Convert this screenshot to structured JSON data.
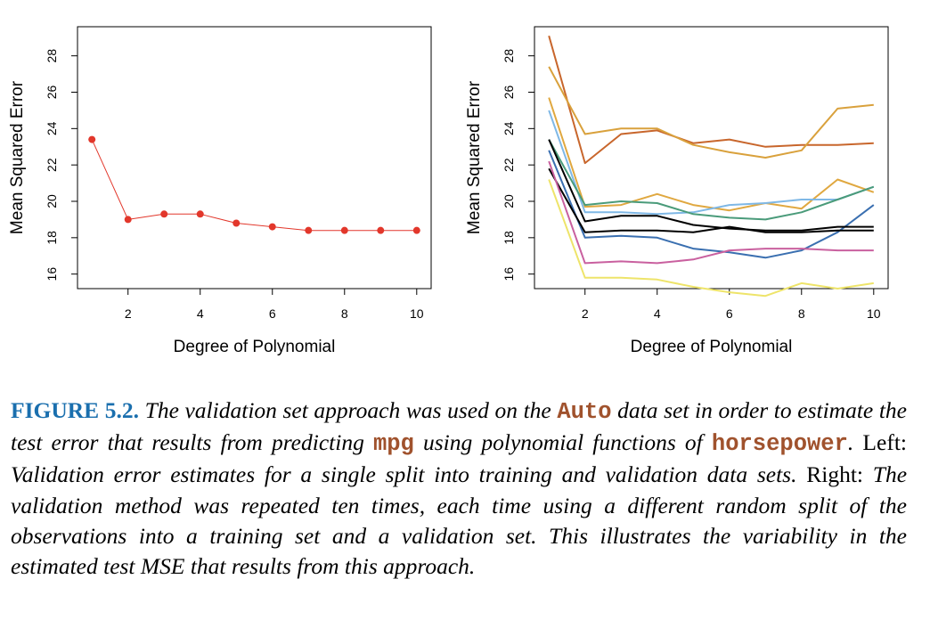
{
  "chart_data": [
    {
      "type": "line",
      "xlabel": "Degree of Polynomial",
      "ylabel": "Mean Squared Error",
      "xlim": [
        0.6,
        10.4
      ],
      "ylim": [
        15.2,
        29.6
      ],
      "xticks": [
        2,
        4,
        6,
        8,
        10
      ],
      "yticks": [
        16,
        18,
        20,
        22,
        24,
        26,
        28
      ],
      "markers": true,
      "series": [
        {
          "color": "#e2372b",
          "x": [
            1,
            2,
            3,
            4,
            5,
            6,
            7,
            8,
            9,
            10
          ],
          "values": [
            23.4,
            19.0,
            19.3,
            19.3,
            18.8,
            18.6,
            18.4,
            18.4,
            18.4,
            18.4
          ]
        }
      ]
    },
    {
      "type": "line",
      "xlabel": "Degree of Polynomial",
      "ylabel": "Mean Squared Error",
      "xlim": [
        0.6,
        10.4
      ],
      "ylim": [
        15.2,
        29.6
      ],
      "xticks": [
        2,
        4,
        6,
        8,
        10
      ],
      "yticks": [
        16,
        18,
        20,
        22,
        24,
        26,
        28
      ],
      "markers": false,
      "series": [
        {
          "color": "#c8662c",
          "x": [
            1,
            2,
            3,
            4,
            5,
            6,
            7,
            8,
            9,
            10
          ],
          "values": [
            29.1,
            22.1,
            23.7,
            23.9,
            23.2,
            23.4,
            23.0,
            23.1,
            23.1,
            23.2
          ]
        },
        {
          "color": "#d9a13c",
          "x": [
            1,
            2,
            3,
            4,
            5,
            6,
            7,
            8,
            9,
            10
          ],
          "values": [
            27.4,
            23.7,
            24.0,
            24.0,
            23.1,
            22.7,
            22.4,
            22.8,
            25.1,
            25.3
          ]
        },
        {
          "color": "#e0a840",
          "x": [
            1,
            2,
            3,
            4,
            5,
            6,
            7,
            8,
            9,
            10
          ],
          "values": [
            25.7,
            19.7,
            19.8,
            20.4,
            19.8,
            19.5,
            19.9,
            19.6,
            21.2,
            20.5
          ]
        },
        {
          "color": "#7fb8e6",
          "x": [
            1,
            2,
            3,
            4,
            5,
            6,
            7,
            8,
            9,
            10
          ],
          "values": [
            25.0,
            19.4,
            19.4,
            19.3,
            19.4,
            19.8,
            19.9,
            20.1,
            20.1,
            20.8
          ]
        },
        {
          "color": "#4a9b7a",
          "x": [
            1,
            2,
            3,
            4,
            5,
            6,
            7,
            8,
            9,
            10
          ],
          "values": [
            23.4,
            19.8,
            20.0,
            19.9,
            19.3,
            19.1,
            19.0,
            19.4,
            20.1,
            20.8
          ]
        },
        {
          "color": "#3a6fb0",
          "x": [
            1,
            2,
            3,
            4,
            5,
            6,
            7,
            8,
            9,
            10
          ],
          "values": [
            22.8,
            18.0,
            18.1,
            18.0,
            17.4,
            17.2,
            16.9,
            17.3,
            18.3,
            19.8
          ]
        },
        {
          "color": "#000000",
          "x": [
            1,
            2,
            3,
            4,
            5,
            6,
            7,
            8,
            9,
            10
          ],
          "values": [
            23.4,
            18.9,
            19.2,
            19.2,
            18.7,
            18.5,
            18.4,
            18.4,
            18.6,
            18.6
          ]
        },
        {
          "color": "#000000",
          "x": [
            1,
            2,
            3,
            4,
            5,
            6,
            7,
            8,
            9,
            10
          ],
          "values": [
            21.8,
            18.3,
            18.4,
            18.4,
            18.3,
            18.6,
            18.3,
            18.3,
            18.4,
            18.4
          ]
        },
        {
          "color": "#c9609f",
          "x": [
            1,
            2,
            3,
            4,
            5,
            6,
            7,
            8,
            9,
            10
          ],
          "values": [
            22.2,
            16.6,
            16.7,
            16.6,
            16.8,
            17.3,
            17.4,
            17.4,
            17.3,
            17.3
          ]
        },
        {
          "color": "#eee46a",
          "x": [
            1,
            2,
            3,
            4,
            5,
            6,
            7,
            8,
            9,
            10
          ],
          "values": [
            21.2,
            15.8,
            15.8,
            15.7,
            15.3,
            15.0,
            14.8,
            15.5,
            15.2,
            15.5
          ]
        }
      ]
    }
  ],
  "caption": {
    "label": "FIGURE 5.2.",
    "t1": " The validation set approach was used on the ",
    "c1": "Auto",
    "t2": " data set in order to estimate the test error that results from predicting ",
    "c2": "mpg",
    "t3": " using polynomial functions of ",
    "c3": "horsepower",
    "t4": ".",
    "p1": " Left: ",
    "t5": "Validation error estimates for a single split into training and validation data sets.",
    "p2": " Right: ",
    "t6": "The validation method was repeated ten times, each time using a different random split of the observations into a training set and a validation set. This illustrates the variability in the estimated test MSE that results from this approach."
  }
}
